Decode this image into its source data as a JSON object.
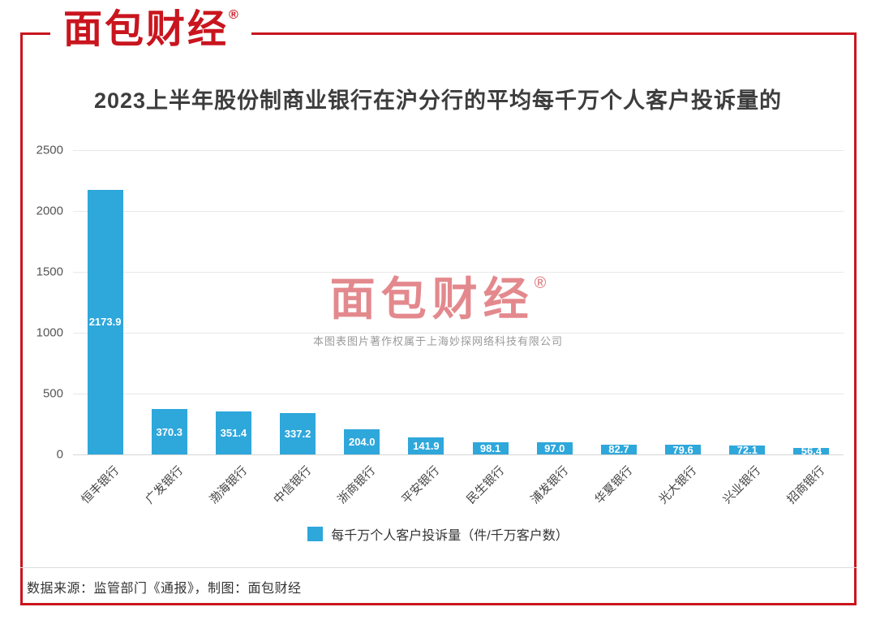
{
  "brand": {
    "logo_text": "面包财经",
    "reg_mark": "®"
  },
  "chart_data": {
    "type": "bar",
    "title": "2023上半年股份制商业银行在沪分行的平均每千万个人客户投诉量的",
    "categories": [
      "恒丰银行",
      "广发银行",
      "渤海银行",
      "中信银行",
      "浙商银行",
      "平安银行",
      "民生银行",
      "浦发银行",
      "华夏银行",
      "光大银行",
      "兴业银行",
      "招商银行"
    ],
    "values": [
      2173.9,
      370.3,
      351.4,
      337.2,
      204.0,
      141.9,
      98.1,
      97.0,
      82.7,
      79.6,
      72.1,
      56.4
    ],
    "value_labels": [
      "2173.9",
      "370.3",
      "351.4",
      "337.2",
      "204.0",
      "141.9",
      "98.1",
      "97.0",
      "82.7",
      "79.6",
      "72.1",
      "56.4"
    ],
    "xlabel": "",
    "ylabel": "",
    "ylim": [
      0,
      2500
    ],
    "yticks": [
      0,
      500,
      1000,
      1500,
      2000,
      2500
    ],
    "grid": true,
    "legend": "每千万个人客户投诉量（件/千万客户数）",
    "legend_position": "bottom"
  },
  "watermark": {
    "logo_text": "面包财经",
    "reg_mark": "®",
    "copyright_text": "本图表图片著作权属于上海妙探网络科技有限公司"
  },
  "footer": {
    "source_text": "数据来源：监管部门《通报》，制图：面包财经"
  },
  "colors": {
    "accent_red": "#C9151E",
    "bar_blue": "#2EA7DB"
  }
}
